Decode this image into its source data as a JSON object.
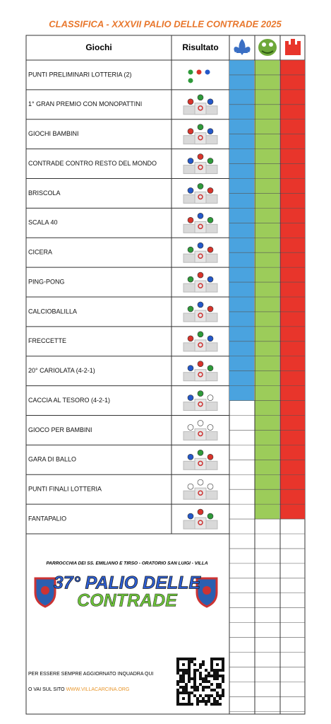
{
  "title": "CLASSIFICA - XXXVII PALIO DELLE CONTRADE 2025",
  "table": {
    "headers": [
      "Giochi",
      "Risultato"
    ],
    "rows": [
      "PUNTI PRELIMINARI LOTTERIA (2)",
      "1° GRAN PREMIO CON MONOPATTINI",
      "GIOCHI BAMBINI",
      "CONTRADE CONTRO RESTO DEL MONDO",
      "BRISCOLA",
      "SCALA 40",
      "CICERA",
      "PING-PONG",
      "CALCIOBALILLA",
      "FRECCETTE",
      "20° CARIOLATA (4-2-1)",
      "CACCIA AL TESORO (4-2-1)",
      "GIOCO PER BAMBINI",
      "GARA DI BALLO",
      "PUNTI FINALI LOTTERIA",
      "FANTAPALIO"
    ],
    "points": [
      23,
      31,
      31
    ]
  },
  "footer": {
    "parish": "PARROCCHIA DEI SS. EMILIANO E TIRSO - ORATORIO SAN LUIGI - VILLA",
    "logo_line1": "37° PALIO DELLE",
    "logo_line2": "CONTRADE",
    "scan_text": "PER ESSERE SEMPRE AGGIORNATO INQUADRA QUI",
    "site_prefix": "O VAI SUL SITO",
    "site_url": "WWW.VILLACARCINA.ORG"
  }
}
